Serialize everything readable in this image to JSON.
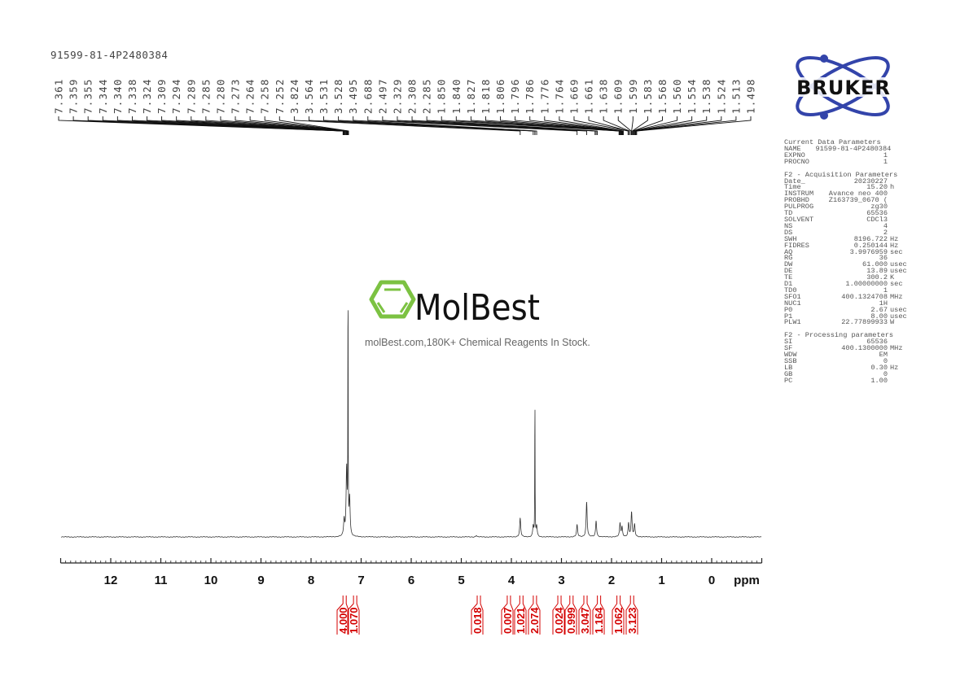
{
  "title": "91599-81-4P2480384",
  "logos": {
    "bruker": "BRUKER",
    "molbest": "MolBest"
  },
  "watermark_tagline": "molBest.com,180K+ Chemical Reagents In Stock.",
  "params": {
    "current_header": "Current Data Parameters",
    "current": [
      [
        "NAME",
        "91599-81-4P2480384",
        ""
      ],
      [
        "EXPNO",
        "1",
        ""
      ],
      [
        "PROCNO",
        "1",
        ""
      ]
    ],
    "acq_header": "F2 - Acquisition Parameters",
    "acq": [
      [
        "Date_",
        "20230227",
        ""
      ],
      [
        "Time",
        "15.20",
        "h"
      ],
      [
        "INSTRUM",
        "Avance neo 400",
        ""
      ],
      [
        "PROBHD",
        "Z163739_0670 (",
        ""
      ],
      [
        "PULPROG",
        "zg30",
        ""
      ],
      [
        "TD",
        "65536",
        ""
      ],
      [
        "SOLVENT",
        "CDCl3",
        ""
      ],
      [
        "NS",
        "4",
        ""
      ],
      [
        "DS",
        "2",
        ""
      ],
      [
        "SWH",
        "8196.722",
        "Hz"
      ],
      [
        "FIDRES",
        "0.250144",
        "Hz"
      ],
      [
        "AQ",
        "3.9976959",
        "sec"
      ],
      [
        "RG",
        "36",
        ""
      ],
      [
        "DW",
        "61.000",
        "usec"
      ],
      [
        "DE",
        "13.89",
        "usec"
      ],
      [
        "TE",
        "300.2",
        "K"
      ],
      [
        "D1",
        "1.00000000",
        "sec"
      ],
      [
        "TD0",
        "1",
        ""
      ],
      [
        "SFO1",
        "400.1324708",
        "MHz"
      ],
      [
        "NUC1",
        "1H",
        ""
      ],
      [
        "P0",
        "2.67",
        "usec"
      ],
      [
        "P1",
        "8.00",
        "usec"
      ],
      [
        "PLW1",
        "22.77899933",
        "W"
      ]
    ],
    "proc_header": "F2 - Processing parameters",
    "proc": [
      [
        "SI",
        "65536",
        ""
      ],
      [
        "SF",
        "400.1300000",
        "MHz"
      ],
      [
        "WDW",
        "EM",
        ""
      ],
      [
        "SSB",
        "0",
        ""
      ],
      [
        "LB",
        "0.30",
        "Hz"
      ],
      [
        "GB",
        "0",
        ""
      ],
      [
        "PC",
        "1.00",
        ""
      ]
    ]
  },
  "chart_data": {
    "type": "line",
    "xlabel": "ppm",
    "xlim": [
      13,
      -1
    ],
    "x_reversed": true,
    "x_ticks": [
      "12",
      "11",
      "10",
      "9",
      "8",
      "7",
      "6",
      "5",
      "4",
      "3",
      "2",
      "1",
      "0"
    ],
    "grid": false,
    "peak_labels": [
      "7.361",
      "7.359",
      "7.355",
      "7.344",
      "7.340",
      "7.338",
      "7.324",
      "7.309",
      "7.294",
      "7.289",
      "7.285",
      "7.280",
      "7.273",
      "7.264",
      "7.258",
      "7.252",
      "3.824",
      "3.564",
      "3.531",
      "3.528",
      "3.495",
      "2.688",
      "2.497",
      "2.329",
      "2.308",
      "2.285",
      "1.850",
      "1.840",
      "1.827",
      "1.818",
      "1.806",
      "1.796",
      "1.786",
      "1.776",
      "1.764",
      "1.669",
      "1.661",
      "1.638",
      "1.609",
      "1.599",
      "1.583",
      "1.568",
      "1.560",
      "1.554",
      "1.538",
      "1.524",
      "1.513",
      "1.498"
    ],
    "integrals": [
      {
        "ppm": 7.33,
        "value": "4.000"
      },
      {
        "ppm": 7.12,
        "value": "1.070"
      },
      {
        "ppm": 4.65,
        "value": "0.018"
      },
      {
        "ppm": 4.05,
        "value": "0.007"
      },
      {
        "ppm": 3.8,
        "value": "1.021"
      },
      {
        "ppm": 3.53,
        "value": "2.074"
      },
      {
        "ppm": 3.04,
        "value": "0.024"
      },
      {
        "ppm": 2.8,
        "value": "0.999"
      },
      {
        "ppm": 2.52,
        "value": "3.047"
      },
      {
        "ppm": 2.25,
        "value": "1.164"
      },
      {
        "ppm": 1.86,
        "value": "1.062"
      },
      {
        "ppm": 1.59,
        "value": "3.123"
      }
    ],
    "peaks": [
      {
        "ppm": 7.262,
        "height": 100
      },
      {
        "ppm": 7.29,
        "height": 25
      },
      {
        "ppm": 7.23,
        "height": 14
      },
      {
        "ppm": 7.34,
        "height": 6
      },
      {
        "ppm": 4.7,
        "height": 0.6
      },
      {
        "ppm": 3.824,
        "height": 7
      },
      {
        "ppm": 3.564,
        "height": 4
      },
      {
        "ppm": 3.53,
        "height": 55
      },
      {
        "ppm": 3.495,
        "height": 4
      },
      {
        "ppm": 2.688,
        "height": 4.5
      },
      {
        "ppm": 2.497,
        "height": 13
      },
      {
        "ppm": 2.308,
        "height": 6
      },
      {
        "ppm": 1.83,
        "height": 5
      },
      {
        "ppm": 1.79,
        "height": 3.5
      },
      {
        "ppm": 1.66,
        "height": 5
      },
      {
        "ppm": 1.6,
        "height": 9
      },
      {
        "ppm": 1.54,
        "height": 4.5
      }
    ],
    "colors": {
      "spectrum": "#333333",
      "integrals": "#d40000",
      "bruker_blue": "#3344aa",
      "molbest_green": "#7cc242"
    }
  }
}
